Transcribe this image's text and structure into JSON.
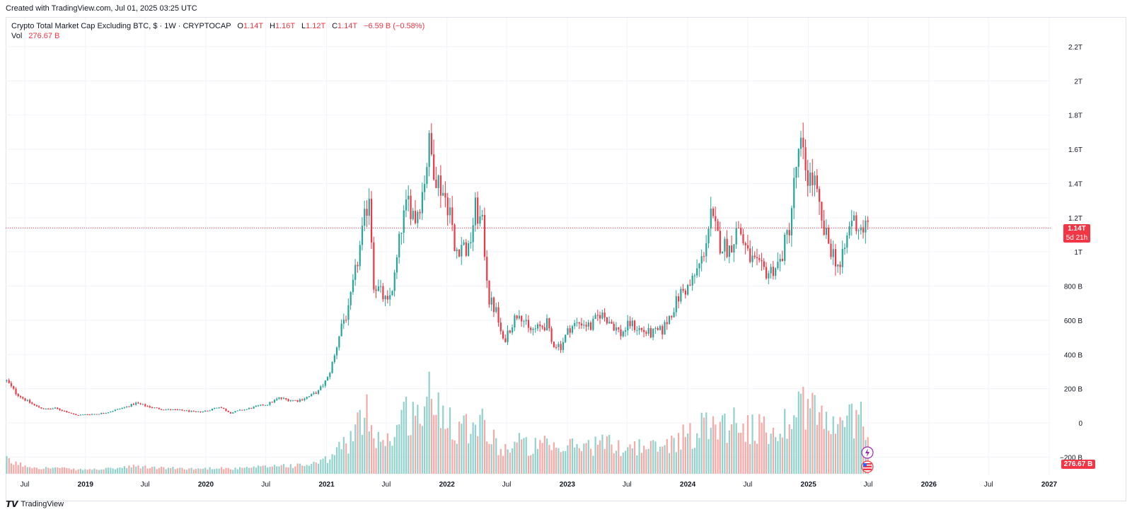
{
  "header": {
    "created_text": "Created with TradingView.com, Jul 01, 2025 03:25 UTC"
  },
  "legend": {
    "symbol": "Crypto Total Market Cap Excluding BTC, $ · 1W · CRYPTOCAP",
    "o_label": "O",
    "o_value": "1.14T",
    "h_label": "H",
    "h_value": "1.16T",
    "l_label": "L",
    "l_value": "1.12T",
    "c_label": "C",
    "c_value": "1.14T",
    "change": "−6.59 B (−0.58%)",
    "vol_label": "Vol",
    "vol_value": "276.67 B"
  },
  "price_badge": {
    "value": "1.14T",
    "countdown": "5d 21h"
  },
  "volume_badge": {
    "value": "276.67 B"
  },
  "footer": {
    "logo": "TradingView"
  },
  "colors": {
    "up": "#26a69a",
    "down": "#f23645",
    "volume_up": "#92d2cc",
    "volume_down": "#f7a9a7",
    "grid": "#f0f3fa",
    "price_line": "#f23645"
  },
  "chart_data": {
    "type": "candlestick",
    "timeframe": "1W",
    "y_unit": "USD",
    "y_ticks": [
      "2.2T",
      "2T",
      "1.8T",
      "1.6T",
      "1.4T",
      "1.2T",
      "1T",
      "800 B",
      "600 B",
      "400 B",
      "200 B",
      "0",
      "−200 B"
    ],
    "y_tick_values": [
      2200,
      2000,
      1800,
      1600,
      1400,
      1200,
      1000,
      800,
      600,
      400,
      200,
      0,
      -200
    ],
    "x_ticks": [
      "Jul",
      "2019",
      "Jul",
      "2020",
      "Jul",
      "2021",
      "Jul",
      "2022",
      "Jul",
      "2023",
      "Jul",
      "2024",
      "Jul",
      "2025",
      "Jul",
      "2026",
      "Jul",
      "2027"
    ],
    "x_tick_dates": [
      "2018-07-01",
      "2019-01-01",
      "2019-07-01",
      "2020-01-01",
      "2020-07-01",
      "2021-01-01",
      "2021-07-01",
      "2022-01-01",
      "2022-07-01",
      "2023-01-01",
      "2023-07-01",
      "2024-01-01",
      "2024-07-01",
      "2025-01-01",
      "2025-07-01",
      "2026-01-01",
      "2026-07-01",
      "2027-01-01"
    ],
    "value_unit": "billions USD",
    "close_series": [
      [
        "2018-05-07",
        245
      ],
      [
        "2018-06-04",
        175
      ],
      [
        "2018-07-02",
        135
      ],
      [
        "2018-08-06",
        95
      ],
      [
        "2018-09-03",
        80
      ],
      [
        "2018-10-01",
        85
      ],
      [
        "2018-11-05",
        65
      ],
      [
        "2018-12-03",
        45
      ],
      [
        "2019-01-07",
        50
      ],
      [
        "2019-02-04",
        52
      ],
      [
        "2019-03-04",
        60
      ],
      [
        "2019-04-01",
        75
      ],
      [
        "2019-05-06",
        95
      ],
      [
        "2019-06-03",
        115
      ],
      [
        "2019-07-01",
        100
      ],
      [
        "2019-08-05",
        85
      ],
      [
        "2019-09-02",
        78
      ],
      [
        "2019-10-07",
        75
      ],
      [
        "2019-11-04",
        70
      ],
      [
        "2019-12-02",
        62
      ],
      [
        "2020-01-06",
        72
      ],
      [
        "2020-02-10",
        95
      ],
      [
        "2020-03-16",
        58
      ],
      [
        "2020-04-06",
        70
      ],
      [
        "2020-05-04",
        80
      ],
      [
        "2020-06-01",
        95
      ],
      [
        "2020-07-06",
        110
      ],
      [
        "2020-08-10",
        145
      ],
      [
        "2020-09-07",
        135
      ],
      [
        "2020-10-05",
        130
      ],
      [
        "2020-11-09",
        155
      ],
      [
        "2020-12-07",
        185
      ],
      [
        "2021-01-04",
        260
      ],
      [
        "2021-01-25",
        390
      ],
      [
        "2021-02-15",
        580
      ],
      [
        "2021-03-08",
        650
      ],
      [
        "2021-04-05",
        950
      ],
      [
        "2021-04-19",
        1100
      ],
      [
        "2021-05-10",
        1350
      ],
      [
        "2021-05-24",
        820
      ],
      [
        "2021-06-14",
        760
      ],
      [
        "2021-07-05",
        690
      ],
      [
        "2021-07-26",
        850
      ],
      [
        "2021-08-16",
        1150
      ],
      [
        "2021-09-06",
        1300
      ],
      [
        "2021-09-27",
        1200
      ],
      [
        "2021-10-18",
        1350
      ],
      [
        "2021-11-08",
        1620
      ],
      [
        "2021-11-29",
        1450
      ],
      [
        "2021-12-20",
        1350
      ],
      [
        "2022-01-10",
        1250
      ],
      [
        "2022-01-24",
        1000
      ],
      [
        "2022-02-14",
        1050
      ],
      [
        "2022-03-07",
        1000
      ],
      [
        "2022-03-28",
        1250
      ],
      [
        "2022-04-18",
        1150
      ],
      [
        "2022-05-09",
        720
      ],
      [
        "2022-05-30",
        650
      ],
      [
        "2022-06-20",
        470
      ],
      [
        "2022-07-11",
        560
      ],
      [
        "2022-08-08",
        660
      ],
      [
        "2022-09-05",
        540
      ],
      [
        "2022-10-03",
        550
      ],
      [
        "2022-10-31",
        580
      ],
      [
        "2022-11-14",
        470
      ],
      [
        "2022-12-12",
        450
      ],
      [
        "2023-01-09",
        560
      ],
      [
        "2023-02-13",
        590
      ],
      [
        "2023-03-13",
        560
      ],
      [
        "2023-04-10",
        640
      ],
      [
        "2023-05-08",
        600
      ],
      [
        "2023-06-12",
        520
      ],
      [
        "2023-07-10",
        580
      ],
      [
        "2023-08-14",
        540
      ],
      [
        "2023-09-11",
        520
      ],
      [
        "2023-10-16",
        540
      ],
      [
        "2023-11-13",
        650
      ],
      [
        "2023-12-11",
        760
      ],
      [
        "2024-01-08",
        800
      ],
      [
        "2024-02-12",
        950
      ],
      [
        "2024-03-11",
        1200
      ],
      [
        "2024-04-08",
        1050
      ],
      [
        "2024-05-06",
        1020
      ],
      [
        "2024-06-03",
        1150
      ],
      [
        "2024-07-01",
        980
      ],
      [
        "2024-08-05",
        900
      ],
      [
        "2024-09-02",
        880
      ],
      [
        "2024-10-07",
        940
      ],
      [
        "2024-11-04",
        1150
      ],
      [
        "2024-11-25",
        1500
      ],
      [
        "2024-12-09",
        1600
      ],
      [
        "2024-12-30",
        1450
      ],
      [
        "2025-01-20",
        1400
      ],
      [
        "2025-02-10",
        1150
      ],
      [
        "2025-03-03",
        1050
      ],
      [
        "2025-04-07",
        900
      ],
      [
        "2025-05-12",
        1200
      ],
      [
        "2025-06-02",
        1150
      ],
      [
        "2025-06-30",
        1140
      ]
    ],
    "last": {
      "open": "1.14T",
      "high": "1.16T",
      "low": "1.12T",
      "close": "1.14T",
      "change": "−6.59 B (−0.58%)",
      "volume": "276.67 B"
    }
  }
}
